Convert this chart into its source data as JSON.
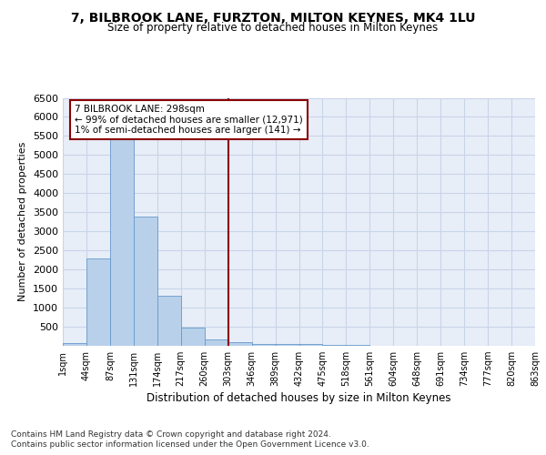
{
  "title": "7, BILBROOK LANE, FURZTON, MILTON KEYNES, MK4 1LU",
  "subtitle": "Size of property relative to detached houses in Milton Keynes",
  "xlabel": "Distribution of detached houses by size in Milton Keynes",
  "ylabel": "Number of detached properties",
  "bar_values": [
    75,
    2280,
    5420,
    3380,
    1310,
    480,
    170,
    90,
    50,
    50,
    40,
    30,
    20,
    10,
    5,
    5,
    5,
    5,
    5,
    5
  ],
  "bin_labels": [
    "1sqm",
    "44sqm",
    "87sqm",
    "131sqm",
    "174sqm",
    "217sqm",
    "260sqm",
    "303sqm",
    "346sqm",
    "389sqm",
    "432sqm",
    "475sqm",
    "518sqm",
    "561sqm",
    "604sqm",
    "648sqm",
    "691sqm",
    "734sqm",
    "777sqm",
    "820sqm",
    "863sqm"
  ],
  "bar_color": "#b8d0ea",
  "bar_edge_color": "#6699cc",
  "vline_color": "#8b0000",
  "vline_x_index": 6.5,
  "annotation_text": "7 BILBROOK LANE: 298sqm\n← 99% of detached houses are smaller (12,971)\n1% of semi-detached houses are larger (141) →",
  "annotation_box_color": "white",
  "annotation_box_edge": "#8b0000",
  "ylim": [
    0,
    6500
  ],
  "yticks": [
    0,
    500,
    1000,
    1500,
    2000,
    2500,
    3000,
    3500,
    4000,
    4500,
    5000,
    5500,
    6000,
    6500
  ],
  "footnote1": "Contains HM Land Registry data © Crown copyright and database right 2024.",
  "footnote2": "Contains public sector information licensed under the Open Government Licence v3.0.",
  "bg_color": "#e8eef8",
  "fig_bg_color": "#ffffff",
  "grid_color": "#c8d4e8"
}
